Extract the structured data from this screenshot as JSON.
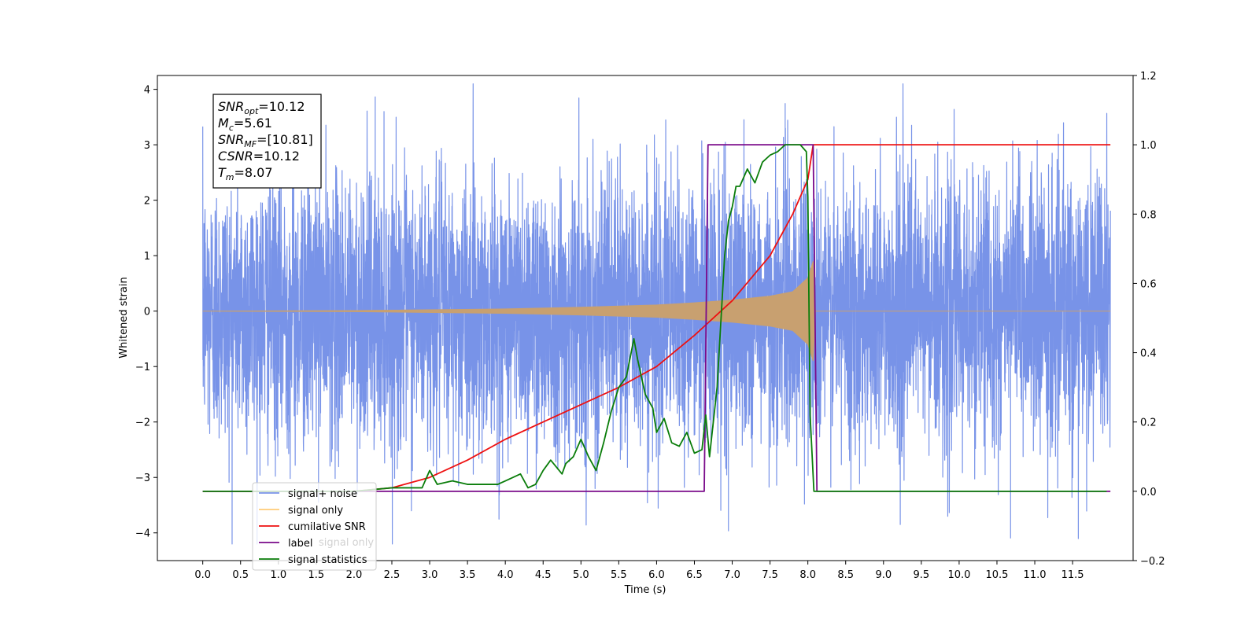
{
  "chart_data": {
    "type": "line",
    "title": "",
    "xlabel": "Time (s)",
    "ylabel_left": "Whitened strain",
    "ylabel_right": "",
    "xlim": [
      -0.6,
      12.3
    ],
    "ylim_left": [
      -4.5,
      4.25
    ],
    "ylim_right": [
      -0.2,
      1.2
    ],
    "x_ticks": [
      "0.0",
      "0.5",
      "1.0",
      "1.5",
      "2.0",
      "2.5",
      "3.0",
      "3.5",
      "4.0",
      "4.5",
      "5.0",
      "5.5",
      "6.0",
      "6.5",
      "7.0",
      "7.5",
      "8.0",
      "8.5",
      "9.0",
      "9.5",
      "10.0",
      "10.5",
      "11.0",
      "11.5"
    ],
    "y_ticks_left": [
      "4",
      "3",
      "2",
      "1",
      "0",
      "−1",
      "−2",
      "−3",
      "−4"
    ],
    "y_ticks_right": [
      "1.2",
      "1.0",
      "0.8",
      "0.6",
      "0.4",
      "0.2",
      "0.0",
      "−0.2"
    ],
    "grid": false,
    "legend_placement": "lower-left",
    "series": [
      {
        "name": "signal+ noise",
        "axis": "left",
        "color": "#7893e8",
        "description_x_range": [
          0.0,
          12.0
        ],
        "noise_amplitude_typical": 1.2,
        "peak_values": [
          {
            "x": 2.28,
            "y": 3.87
          },
          {
            "x": 7.7,
            "y": 3.75
          },
          {
            "x": 6.95,
            "y": -3.97
          },
          {
            "x": 10.68,
            "y": -4.1
          }
        ]
      },
      {
        "name": "signal only",
        "axis": "left",
        "color": "#c8a070",
        "envelope": [
          [
            0.0,
            0.0
          ],
          [
            2.0,
            0.01
          ],
          [
            4.0,
            0.04
          ],
          [
            5.0,
            0.07
          ],
          [
            6.0,
            0.11
          ],
          [
            6.5,
            0.15
          ],
          [
            7.0,
            0.2
          ],
          [
            7.5,
            0.27
          ],
          [
            7.8,
            0.35
          ],
          [
            8.0,
            0.6
          ],
          [
            8.07,
            0.9
          ],
          [
            8.1,
            0.0
          ],
          [
            12.0,
            0.0
          ]
        ]
      },
      {
        "name": "cumilative SNR",
        "axis": "right",
        "color": "#ee1111",
        "x": [
          0.0,
          1.0,
          2.0,
          2.5,
          3.0,
          3.5,
          4.0,
          4.5,
          5.0,
          5.5,
          6.0,
          6.5,
          7.0,
          7.5,
          7.8,
          8.0,
          8.07,
          12.0
        ],
        "y": [
          0.0,
          0.0,
          0.0,
          0.01,
          0.04,
          0.09,
          0.15,
          0.2,
          0.25,
          0.3,
          0.36,
          0.45,
          0.55,
          0.68,
          0.8,
          0.9,
          1.0,
          1.0
        ]
      },
      {
        "name": "label",
        "axis": "right",
        "color": "#7a0a8a",
        "x": [
          0.0,
          6.63,
          6.68,
          8.07,
          8.12,
          12.0
        ],
        "y": [
          0.0,
          0.0,
          1.0,
          1.0,
          0.0,
          0.0
        ]
      },
      {
        "name": "signal statistics",
        "axis": "right",
        "color": "#0a7d0a",
        "x": [
          0.0,
          2.0,
          2.5,
          2.9,
          3.0,
          3.1,
          3.3,
          3.5,
          3.7,
          3.9,
          4.0,
          4.2,
          4.3,
          4.4,
          4.5,
          4.6,
          4.75,
          4.8,
          4.9,
          5.0,
          5.1,
          5.2,
          5.3,
          5.4,
          5.5,
          5.6,
          5.7,
          5.75,
          5.85,
          5.95,
          6.0,
          6.1,
          6.2,
          6.3,
          6.4,
          6.5,
          6.6,
          6.65,
          6.7,
          6.8,
          6.9,
          6.95,
          7.0,
          7.05,
          7.1,
          7.2,
          7.3,
          7.4,
          7.5,
          7.6,
          7.7,
          7.8,
          7.9,
          7.98,
          8.0,
          8.03,
          8.08,
          8.12,
          11.95
        ],
        "y": [
          0.0,
          0.0,
          0.01,
          0.01,
          0.06,
          0.02,
          0.03,
          0.02,
          0.02,
          0.02,
          0.03,
          0.05,
          0.01,
          0.02,
          0.06,
          0.09,
          0.05,
          0.08,
          0.1,
          0.15,
          0.1,
          0.06,
          0.14,
          0.23,
          0.3,
          0.33,
          0.44,
          0.38,
          0.28,
          0.24,
          0.17,
          0.21,
          0.14,
          0.13,
          0.17,
          0.11,
          0.12,
          0.22,
          0.1,
          0.3,
          0.68,
          0.78,
          0.82,
          0.88,
          0.88,
          0.93,
          0.89,
          0.95,
          0.97,
          0.98,
          1.0,
          1.0,
          1.0,
          0.98,
          0.85,
          0.22,
          0.0,
          0.0,
          0.0
        ]
      }
    ],
    "info_box": [
      {
        "symbol": "SNR",
        "sub": "opt",
        "value": "=10.12"
      },
      {
        "symbol": "M",
        "sub": "c",
        "value": "=5.61"
      },
      {
        "symbol": "SNR",
        "sub": "MF",
        "value": "=[10.81]"
      },
      {
        "symbol": "CSNR",
        "sub": "",
        "value": "=10.12"
      },
      {
        "symbol": "T",
        "sub": "m",
        "value": "=8.07"
      }
    ],
    "legend_entries": [
      {
        "name": "signal+ noise",
        "color": "#7893e8"
      },
      {
        "name": "signal only",
        "color": "#ffcc77"
      },
      {
        "name": "cumilative SNR",
        "color": "#ee1111"
      },
      {
        "name": "label",
        "color": "#7a0a8a"
      },
      {
        "name": "signal statistics",
        "color": "#0a7d0a"
      }
    ],
    "legend_hidden_text": "signal only"
  }
}
